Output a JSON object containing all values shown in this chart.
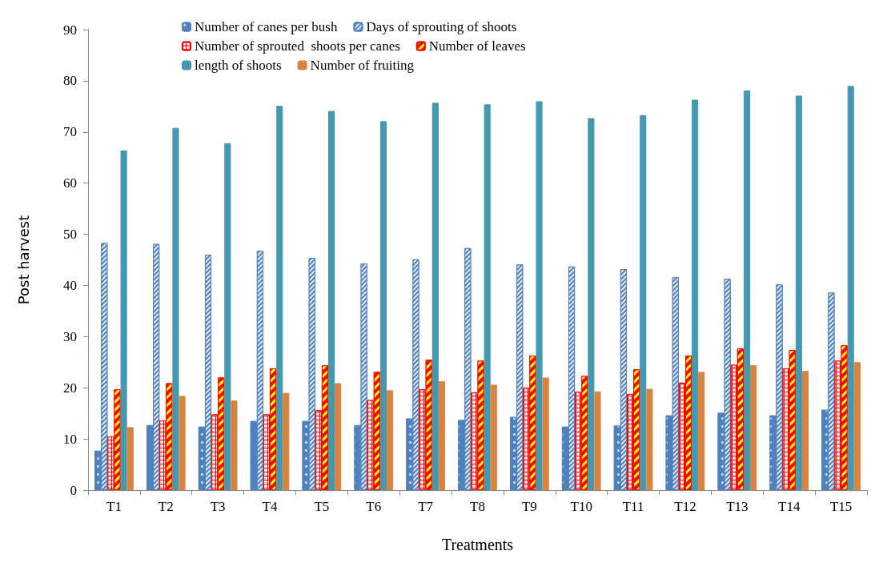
{
  "chart_data": {
    "type": "bar",
    "xlabel": "Treatments",
    "ylabel": "Post harvest",
    "categories": [
      "T1",
      "T2",
      "T3",
      "T4",
      "T5",
      "T6",
      "T7",
      "T8",
      "T9",
      "T10",
      "T11",
      "T12",
      "T13",
      "T14",
      "T15"
    ],
    "series": [
      {
        "name": "Number of canes per bush",
        "color": "#4f81bd",
        "values": [
          7.7,
          12.7,
          12.4,
          13.5,
          13.5,
          12.7,
          14,
          13.7,
          14.3,
          12.4,
          12.6,
          14.6,
          15.1,
          14.6,
          15.7
        ]
      },
      {
        "name": "Days of sprouting of shoots",
        "color": "#4f81bd",
        "values": [
          48.3,
          48.1,
          46,
          46.8,
          45.4,
          44.3,
          45.1,
          47.3,
          44.1,
          43.7,
          43.2,
          41.6,
          41.3,
          40.2,
          38.6
        ]
      },
      {
        "name": "Number of sprouted  shoots per canes",
        "color": "#ff0000",
        "values": [
          10.5,
          13.6,
          14.8,
          14.8,
          15.6,
          17.6,
          19.7,
          19.1,
          20,
          19.2,
          18.8,
          21,
          24.5,
          23.8,
          25.3
        ]
      },
      {
        "name": "Number of leaves",
        "color": "#ff0000",
        "values": [
          19.7,
          20.9,
          22,
          23.8,
          24.4,
          23.1,
          25.5,
          25.3,
          26.3,
          22.3,
          23.6,
          26.3,
          27.7,
          27.4,
          28.3
        ]
      },
      {
        "name": "length of shoots",
        "color": "#4399b0",
        "values": [
          66.4,
          70.8,
          67.8,
          75.1,
          74.1,
          72.1,
          75.7,
          75.4,
          76,
          72.7,
          73.3,
          76.3,
          78.1,
          77.1,
          79
        ]
      },
      {
        "name": "Number of fruiting",
        "color": "#d9833f",
        "values": [
          12.3,
          18.4,
          17.5,
          19,
          20.9,
          19.5,
          21.3,
          20.6,
          22,
          19.3,
          19.8,
          23.1,
          24.4,
          23.3,
          25
        ]
      }
    ],
    "ylim": [
      0,
      90
    ],
    "yticks": [
      0,
      10,
      20,
      30,
      40,
      50,
      60,
      70,
      80,
      90
    ],
    "grid": false,
    "legend": "top"
  }
}
